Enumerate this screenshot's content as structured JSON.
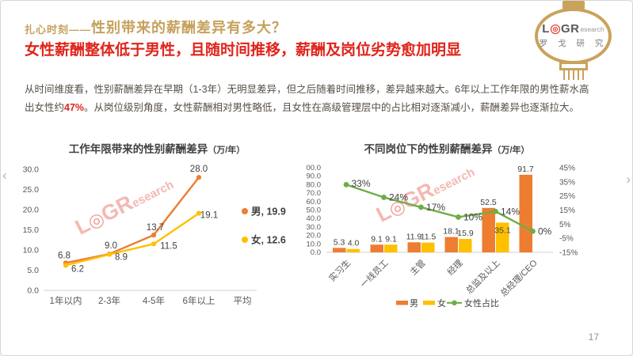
{
  "page_number": "17",
  "nav": {
    "prev": "‹",
    "next": "›"
  },
  "header": {
    "kicker": "扎心时刻——",
    "title": "性别带来的薪酬差异有多大？",
    "headline": "女性薪酬整体低于男性，且随时间推移，薪酬及岗位劣势愈加明显",
    "body_pre": "从时间维度看，性别薪酬差异在早期（1-3年）无明显差异，但之后随着时间推移，差异越来越大。6年以上工作年限的男性薪水高出女性约",
    "body_highlight": "47%",
    "body_post": "。从岗位级别角度，女性薪酬相对男性略低，且女性在高级管理层中的占比相对逐渐减小，薪酬差异也逐渐拉大。"
  },
  "logo": {
    "l": "L",
    "target_glyph": "◎",
    "gr": "GR",
    "research": "esearch",
    "cn": "罗 戈 研 究"
  },
  "colors": {
    "accent_gold": "#C6A15C",
    "accent_red": "#E0241B",
    "male": "#ED7D31",
    "female": "#FFC000",
    "ratio_line": "#6FAD46",
    "watermark": "#F3B1AA",
    "watermark_ring": "#EE9187",
    "axis_text": "#595959",
    "label_text": "#404040"
  },
  "chart_data": [
    {
      "type": "line",
      "title": "工作年限带来的性别薪酬差异",
      "unit": "（万/年）",
      "categories": [
        "1年以内",
        "2-3年",
        "4-5年",
        "6年以上",
        "平均"
      ],
      "yticks": [
        "30.0",
        "25.0",
        "20.0",
        "15.0",
        "10.0",
        "5.0",
        "0.0"
      ],
      "ylim": [
        0,
        30
      ],
      "grid": false,
      "legend_position": "right",
      "series": [
        {
          "name": "男",
          "color": "#ED7D31",
          "values": [
            6.8,
            9.0,
            13.7,
            28.0
          ],
          "average": 19.9,
          "legend": "男, 19.9"
        },
        {
          "name": "女",
          "color": "#FFC000",
          "values": [
            6.2,
            8.9,
            11.5,
            19.1
          ],
          "average": 12.6,
          "legend": "女, 12.6"
        }
      ]
    },
    {
      "type": "bar",
      "subtype": "bar+line-combo",
      "title": "不同岗位下的性别薪酬差异",
      "unit": "（万/年）",
      "categories": [
        "实习生",
        "一线员工",
        "主管",
        "经理",
        "总监及以上",
        "总经理/CEO"
      ],
      "yticks_left": [
        "100.0",
        "90.0",
        "80.0",
        "70.0",
        "60.0",
        "50.0",
        "40.0",
        "30.0",
        "20.0",
        "10.0",
        "0.0"
      ],
      "yticks_right": [
        "45%",
        "35%",
        "25%",
        "15%",
        "5%",
        "-5%",
        "-15%"
      ],
      "ylim_left": [
        0,
        100
      ],
      "ylim_right": [
        -15,
        45
      ],
      "grid": false,
      "legend_position": "bottom",
      "bar_series": [
        {
          "name": "男",
          "color": "#ED7D31",
          "values": [
            5.3,
            9.1,
            11.9,
            18.1,
            52.5,
            91.7
          ]
        },
        {
          "name": "女",
          "color": "#FFC000",
          "values": [
            4.0,
            9.1,
            11.5,
            15.9,
            35.1,
            null
          ]
        }
      ],
      "line_series": {
        "name": "女性占比",
        "color": "#6FAD46",
        "values": [
          33,
          24,
          17,
          10,
          14,
          0
        ]
      }
    }
  ]
}
